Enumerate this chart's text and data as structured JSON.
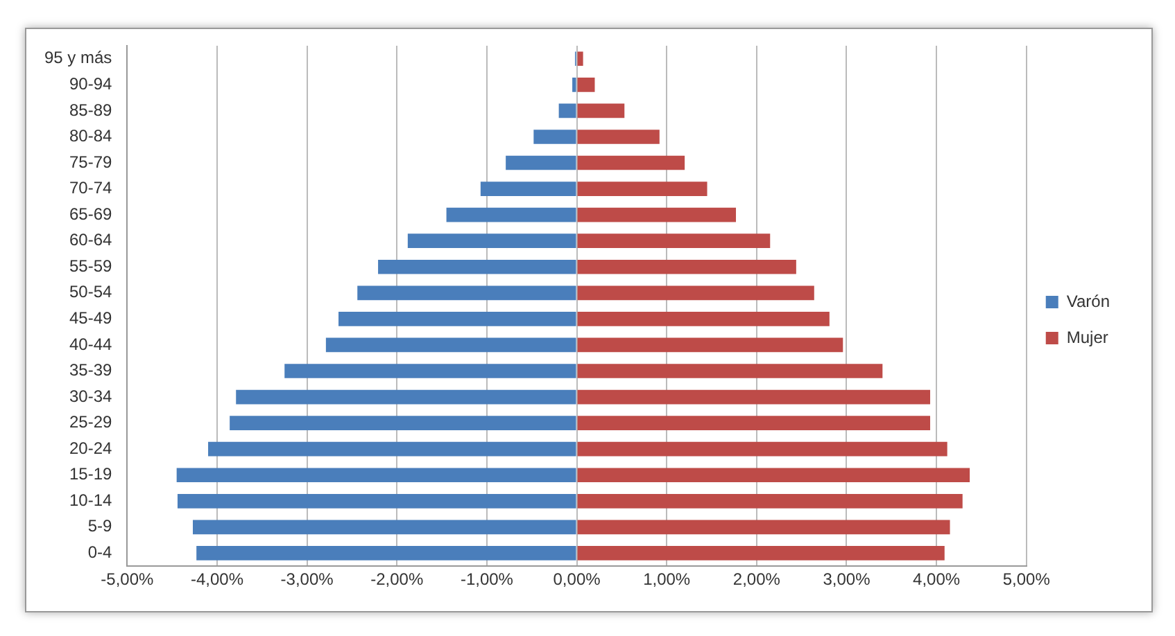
{
  "chart_data": {
    "type": "bar",
    "orientation": "horizontal",
    "stacked": true,
    "categories": [
      "95 y más",
      "90-94",
      "85-89",
      "80-84",
      "75-79",
      "70-74",
      "65-69",
      "60-64",
      "55-59",
      "50-54",
      "45-49",
      "40-44",
      "35-39",
      "30-34",
      "25-29",
      "20-24",
      "15-19",
      "10-14",
      "5-9",
      "0-4"
    ],
    "series": [
      {
        "name": "Varón",
        "color": "#4a7ebb",
        "values": [
          -0.02,
          -0.05,
          -0.2,
          -0.48,
          -0.79,
          -1.07,
          -1.45,
          -1.88,
          -2.21,
          -2.44,
          -2.65,
          -2.79,
          -3.25,
          -3.79,
          -3.86,
          -4.1,
          -4.45,
          -4.44,
          -4.27,
          -4.23
        ]
      },
      {
        "name": "Mujer",
        "color": "#be4b48",
        "values": [
          0.07,
          0.2,
          0.53,
          0.92,
          1.2,
          1.45,
          1.77,
          2.15,
          2.44,
          2.64,
          2.81,
          2.96,
          3.4,
          3.93,
          3.93,
          4.12,
          4.37,
          4.29,
          4.15,
          4.09
        ]
      }
    ],
    "xlim": [
      -5,
      5
    ],
    "xticks": [
      {
        "value": -5,
        "label": "-5,00%"
      },
      {
        "value": -4,
        "label": "-4,00%"
      },
      {
        "value": -3,
        "label": "-3,00%"
      },
      {
        "value": -2,
        "label": "-2,00%"
      },
      {
        "value": -1,
        "label": "-1,00%"
      },
      {
        "value": 0,
        "label": "0,00%"
      },
      {
        "value": 1,
        "label": "1,00%"
      },
      {
        "value": 2,
        "label": "2,00%"
      },
      {
        "value": 3,
        "label": "3,00%"
      },
      {
        "value": 4,
        "label": "4,00%"
      },
      {
        "value": 5,
        "label": "5,00%"
      }
    ],
    "grid": "x",
    "legend": "right"
  }
}
